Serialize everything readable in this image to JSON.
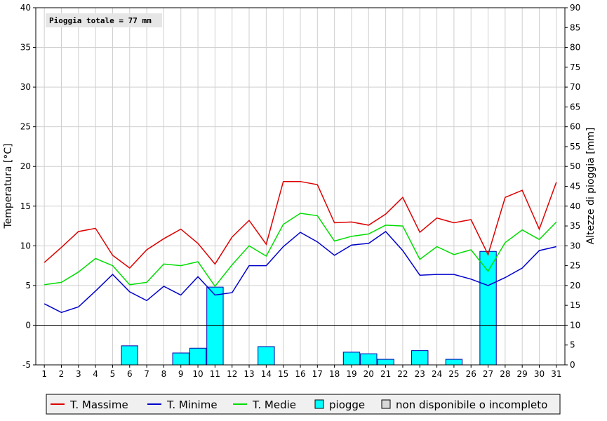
{
  "chart_data": {
    "type": "line",
    "annotation": "Pioggia totale = 77 mm",
    "x": [
      1,
      2,
      3,
      4,
      5,
      6,
      7,
      8,
      9,
      10,
      11,
      12,
      13,
      14,
      15,
      16,
      17,
      18,
      19,
      20,
      21,
      22,
      23,
      24,
      25,
      26,
      27,
      28,
      29,
      30,
      31
    ],
    "ylabel_left": "Temperatura [°C]",
    "ylabel_right": "Altezze di pioggia [mm]",
    "ylim_left": [
      -5,
      40
    ],
    "ylim_right": [
      0,
      90
    ],
    "yticks_left": [
      -5,
      0,
      5,
      10,
      15,
      20,
      25,
      30,
      35,
      40
    ],
    "yticks_right": [
      0,
      5,
      10,
      15,
      20,
      25,
      30,
      35,
      40,
      45,
      50,
      55,
      60,
      65,
      70,
      75,
      80,
      85,
      90
    ],
    "series": [
      {
        "name": "T. Massime",
        "color": "#dd0000",
        "axis": "left",
        "values": [
          7.9,
          9.8,
          11.8,
          12.2,
          8.8,
          7.2,
          9.5,
          10.9,
          12.1,
          10.3,
          7.7,
          11.1,
          13.2,
          10.2,
          18.1,
          18.1,
          17.7,
          12.9,
          13.0,
          12.6,
          14.0,
          16.1,
          11.7,
          13.5,
          12.9,
          13.3,
          8.9,
          16.1,
          17.0,
          12.1,
          18.0
        ]
      },
      {
        "name": "T. Minime",
        "color": "#0000cc",
        "axis": "left",
        "values": [
          2.7,
          1.6,
          2.3,
          4.3,
          6.4,
          4.2,
          3.1,
          4.9,
          3.8,
          6.1,
          3.8,
          4.1,
          7.5,
          7.5,
          9.9,
          11.7,
          10.5,
          8.8,
          10.1,
          10.3,
          11.8,
          9.4,
          6.3,
          6.4,
          6.4,
          5.8,
          5.0,
          6.0,
          7.2,
          9.4,
          9.9
        ]
      },
      {
        "name": "T. Medie",
        "color": "#00dd00",
        "axis": "left",
        "values": [
          5.1,
          5.4,
          6.7,
          8.4,
          7.5,
          5.1,
          5.4,
          7.7,
          7.5,
          8.0,
          4.9,
          7.6,
          10.0,
          8.7,
          12.7,
          14.1,
          13.8,
          10.6,
          11.2,
          11.5,
          12.6,
          12.5,
          8.3,
          9.9,
          8.9,
          9.5,
          6.8,
          10.4,
          12.0,
          10.8,
          13.0
        ]
      },
      {
        "name": "piogge",
        "color": "#00ffff",
        "axis": "right",
        "kind": "bar",
        "values": [
          0,
          0,
          0,
          0,
          0,
          4.8,
          0,
          0,
          3.0,
          4.2,
          19.6,
          0,
          0,
          4.6,
          0,
          0,
          0,
          0,
          3.2,
          2.8,
          1.4,
          0,
          3.6,
          0,
          1.4,
          0,
          28.6,
          0,
          0,
          0,
          0
        ]
      }
    ],
    "legend": {
      "placement": "bottom",
      "entries": [
        {
          "label": "T. Massime",
          "kind": "line",
          "color": "#dd0000"
        },
        {
          "label": "T. Minime",
          "kind": "line",
          "color": "#0000cc"
        },
        {
          "label": "T. Medie",
          "kind": "line",
          "color": "#00dd00"
        },
        {
          "label": "piogge",
          "kind": "box",
          "color": "#00ffff"
        },
        {
          "label": "non disponibile o incompleto",
          "kind": "box",
          "color": "#d8d8d8"
        }
      ]
    },
    "grid": true
  }
}
